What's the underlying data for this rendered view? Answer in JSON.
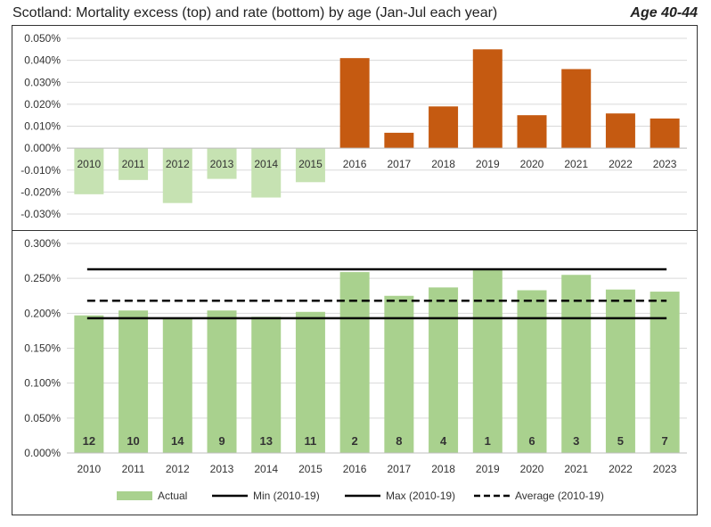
{
  "header": {
    "title": "Scotland: Mortality excess (top) and rate (bottom) by age (Jan-Jul each year)",
    "tag": "Age 40-44"
  },
  "colors": {
    "negative_bar": "#c6e2b2",
    "positive_bar": "#c55a11",
    "rate_bar": "#a9d18e",
    "reference_line": "#000000",
    "gridline": "#d9d9d9"
  },
  "chart_data": [
    {
      "type": "bar",
      "categories": [
        "2010",
        "2011",
        "2012",
        "2013",
        "2014",
        "2015",
        "2016",
        "2017",
        "2018",
        "2019",
        "2020",
        "2021",
        "2022",
        "2023"
      ],
      "series": [
        {
          "values": [
            -0.021,
            -0.0145,
            -0.025,
            -0.014,
            -0.0225,
            -0.0155,
            0.041,
            0.007,
            0.019,
            0.045,
            0.015,
            0.036,
            0.0158,
            0.0135
          ]
        }
      ],
      "ylim": [
        -0.03,
        0.05
      ],
      "yticks": [
        "-0.030%",
        "-0.020%",
        "-0.010%",
        "0.000%",
        "0.010%",
        "0.020%",
        "0.030%",
        "0.040%",
        "0.050%"
      ],
      "ytick_values": [
        -0.03,
        -0.02,
        -0.01,
        0,
        0.01,
        0.02,
        0.03,
        0.04,
        0.05
      ],
      "grid": true
    },
    {
      "type": "bar",
      "categories": [
        "2010",
        "2011",
        "2012",
        "2013",
        "2014",
        "2015",
        "2016",
        "2017",
        "2018",
        "2019",
        "2020",
        "2021",
        "2022",
        "2023"
      ],
      "series": [
        {
          "name": "Actual",
          "values": [
            0.197,
            0.204,
            0.192,
            0.204,
            0.195,
            0.202,
            0.259,
            0.225,
            0.237,
            0.262,
            0.233,
            0.255,
            0.234,
            0.231
          ]
        }
      ],
      "bar_labels": [
        "12",
        "10",
        "14",
        "9",
        "13",
        "11",
        "2",
        "8",
        "4",
        "1",
        "6",
        "3",
        "5",
        "7"
      ],
      "reference_lines": [
        {
          "name": "Min (2010-19)",
          "value": 0.193,
          "style": "solid"
        },
        {
          "name": "Max (2010-19)",
          "value": 0.263,
          "style": "solid"
        },
        {
          "name": "Average (2010-19)",
          "value": 0.218,
          "style": "dashed"
        }
      ],
      "ylim": [
        0,
        0.3
      ],
      "yticks": [
        "0.000%",
        "0.050%",
        "0.100%",
        "0.150%",
        "0.200%",
        "0.250%",
        "0.300%"
      ],
      "ytick_values": [
        0,
        0.05,
        0.1,
        0.15,
        0.2,
        0.25,
        0.3
      ],
      "grid": true,
      "legend_position": "bottom"
    }
  ]
}
